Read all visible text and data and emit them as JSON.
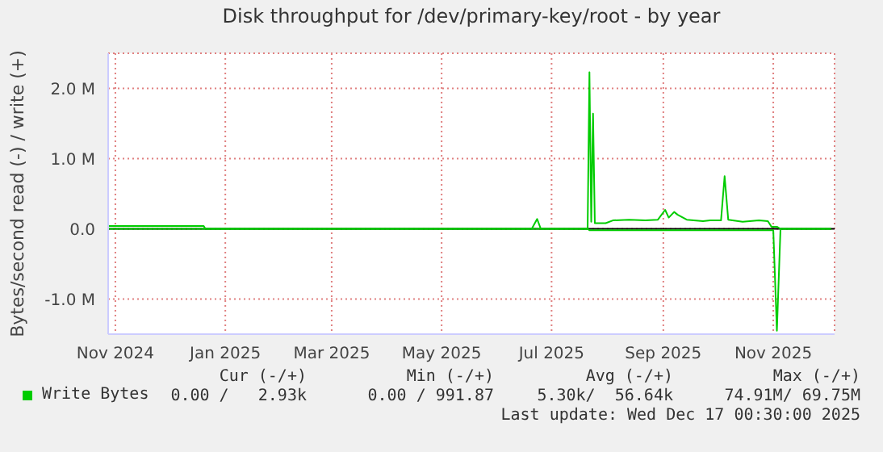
{
  "chart_data": {
    "type": "line",
    "title": "Disk throughput for /dev/primary-key/root - by year",
    "ylabel": "Bytes/second read (-) / write (+)",
    "xlim": [
      "2024-10-28",
      "2025-12-05"
    ],
    "xticks": [
      {
        "value": "2024-11-01",
        "label": "Nov 2024"
      },
      {
        "value": "2025-01-01",
        "label": "Jan 2025"
      },
      {
        "value": "2025-03-01",
        "label": "Mar 2025"
      },
      {
        "value": "2025-05-01",
        "label": "May 2025"
      },
      {
        "value": "2025-07-01",
        "label": "Jul 2025"
      },
      {
        "value": "2025-09-01",
        "label": "Sep 2025"
      },
      {
        "value": "2025-11-01",
        "label": "Nov 2025"
      }
    ],
    "ylim": [
      -1500000,
      2500000
    ],
    "yticks": [
      {
        "value": -1000000,
        "label": "-1.0 M"
      },
      {
        "value": 0,
        "label": "0.0"
      },
      {
        "value": 1000000,
        "label": "1.0 M"
      },
      {
        "value": 2000000,
        "label": "2.0 M"
      }
    ],
    "grid": true,
    "legend": "bottom",
    "marker": "none",
    "series": [
      {
        "name": "Write Bytes",
        "color": "#00cc00",
        "x": [
          "2024-10-28",
          "2024-12-20",
          "2024-12-21",
          "2025-06-20",
          "2025-06-23",
          "2025-06-25",
          "2025-07-21",
          "2025-07-22",
          "2025-07-23",
          "2025-07-24",
          "2025-07-25",
          "2025-07-31",
          "2025-08-04",
          "2025-08-13",
          "2025-08-22",
          "2025-08-29",
          "2025-09-02",
          "2025-09-04",
          "2025-09-07",
          "2025-09-09",
          "2025-09-14",
          "2025-09-23",
          "2025-09-27",
          "2025-10-03",
          "2025-10-05",
          "2025-10-07",
          "2025-10-15",
          "2025-10-24",
          "2025-10-29",
          "2025-10-31",
          "2025-11-03",
          "2025-11-05",
          "2025-12-03"
        ],
        "values": [
          40000,
          40000,
          0,
          0,
          140000,
          0,
          0,
          2230000,
          100000,
          1640000,
          80000,
          80000,
          120000,
          130000,
          120000,
          130000,
          270000,
          160000,
          240000,
          200000,
          130000,
          110000,
          120000,
          120000,
          750000,
          130000,
          100000,
          120000,
          110000,
          30000,
          30000,
          0,
          0
        ]
      },
      {
        "color": "#00cc00",
        "x": [
          "2024-10-28",
          "2025-07-21",
          "2025-07-22",
          "2025-11-01",
          "2025-11-03",
          "2025-11-05",
          "2025-12-03"
        ],
        "values": [
          0,
          0,
          -20000,
          -20000,
          -1450000,
          0,
          0
        ]
      }
    ],
    "ref_lines": [
      {
        "axis": "y",
        "value": 0,
        "color": "#000000"
      }
    ],
    "annotations": [
      "Cur (-/+)",
      "Min (-/+)",
      "Avg (-/+)",
      "Max (-/+)",
      "0.00 /   2.93k",
      "0.00 / 991.87",
      "5.30k/  56.64k",
      "74.91M/ 69.75M",
      "Last update: Wed Dec 17 00:30:00 2025"
    ]
  }
}
